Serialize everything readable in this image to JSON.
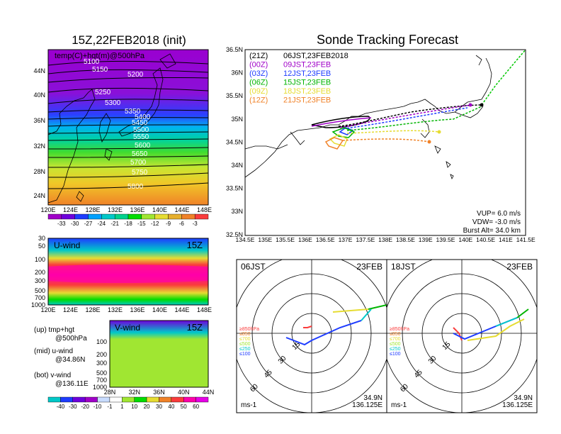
{
  "titles": {
    "init": "15Z,22FEB2018 (init)",
    "tracking": "Sonde Tracking Forecast"
  },
  "map500": {
    "label": "temp(C)+hgt(m)@500hPa",
    "contours": [
      "5100",
      "5150",
      "5200",
      "5250",
      "5300",
      "5350",
      "5400",
      "5450",
      "5500",
      "5550",
      "5600",
      "5650",
      "5700",
      "5750",
      "5800"
    ],
    "lat_ticks": [
      "44N",
      "40N",
      "36N",
      "32N",
      "28N",
      "24N"
    ],
    "lon_ticks": [
      "120E",
      "124E",
      "128E",
      "132E",
      "136E",
      "140E",
      "144E",
      "148E"
    ],
    "colorbar": [
      "-33",
      "-30",
      "-27",
      "-24",
      "-21",
      "-18",
      "-15",
      "-12",
      "-9",
      "-6",
      "-3"
    ],
    "colorbar_colors": [
      "#a000c8",
      "#6e00dc",
      "#1e3cff",
      "#00a0ff",
      "#00c8c8",
      "#00d28c",
      "#00dc00",
      "#a0e632",
      "#e6dc32",
      "#e6af2d",
      "#f08228",
      "#fa3c3c"
    ]
  },
  "uwind": {
    "label": "U-wind",
    "time": "15Z",
    "p_ticks": [
      "30",
      "50",
      "100",
      "200",
      "300",
      "500",
      "700",
      "1000"
    ],
    "lon_ticks": [
      "120E",
      "124E",
      "128E",
      "132E",
      "136E",
      "140E",
      "144E",
      "148E"
    ]
  },
  "vwind": {
    "label": "V-wind",
    "time": "15Z",
    "p_ticks": [
      "30",
      "50",
      "100",
      "200",
      "300",
      "500",
      "700",
      "1000"
    ],
    "lat_ticks": [
      "28N",
      "32N",
      "36N",
      "40N",
      "44N"
    ]
  },
  "notes": {
    "up": "(up) tmp+hgt",
    "up2": "@500hPa",
    "mid": "(mid) u-wind",
    "mid2": "@34.86N",
    "bot": "(bot) v-wind",
    "bot2": "@136.11E"
  },
  "wind_colorbar": [
    "-40",
    "-30",
    "-20",
    "-10",
    "-1",
    "1",
    "10",
    "20",
    "30",
    "40",
    "50",
    "60"
  ],
  "wind_colorbar_colors": [
    "#00c8c8",
    "#1e3cff",
    "#6e00dc",
    "#a000c8",
    "#c8dcff",
    "#ffffff",
    "#a0e632",
    "#00dc00",
    "#e6dc32",
    "#f08228",
    "#fa3c3c",
    "#ff00aa",
    "#e600e6"
  ],
  "tracking": {
    "legend": [
      {
        "run": "(21Z)",
        "time": "06JST,23FEB2018",
        "color": "#000000"
      },
      {
        "run": "(00Z)",
        "time": "09JST,23FEB",
        "color": "#a000c8"
      },
      {
        "run": "(03Z)",
        "time": "12JST,23FEB",
        "color": "#1e3cff"
      },
      {
        "run": "(06Z)",
        "time": "15JST,23FEB",
        "color": "#00b400"
      },
      {
        "run": "(09Z)",
        "time": "18JST,23FEB",
        "color": "#e6dc32"
      },
      {
        "run": "(12Z)",
        "time": "21JST,23FEB",
        "color": "#f08228"
      }
    ],
    "lat_ticks": [
      "36.5N",
      "36N",
      "35.5N",
      "35N",
      "34.5N",
      "34N",
      "33.5N",
      "33N",
      "32.5N"
    ],
    "lon_ticks": [
      "134.5E",
      "135E",
      "135.5E",
      "136E",
      "136.5E",
      "137E",
      "137.5E",
      "138E",
      "138.5E",
      "139E",
      "139.5E",
      "140E",
      "140.5E",
      "141E",
      "141.5E"
    ],
    "vup": "VUP= 6.0 m/s",
    "vdw": "VDW= -3.0 m/s",
    "burst": "Burst Alt= 34.0 km"
  },
  "hodographs": [
    {
      "time": "06JST",
      "date": "23FEB",
      "lat": "34.9N",
      "lon": "136.125E"
    },
    {
      "time": "18JST",
      "date": "23FEB",
      "lat": "34.9N",
      "lon": "136.125E"
    }
  ],
  "hodo_common": {
    "rings": [
      "15",
      "30",
      "45",
      "60"
    ],
    "levels": [
      {
        "label": "≥850hPa",
        "color": "#fa3c3c"
      },
      {
        "label": "≤850",
        "color": "#f08228"
      },
      {
        "label": "≤700",
        "color": "#e6dc32"
      },
      {
        "label": "≤500",
        "color": "#a0e632"
      },
      {
        "label": "≤250",
        "color": "#00c8c8"
      },
      {
        "label": "≤100",
        "color": "#1e3cff"
      }
    ],
    "unit": "ms-1"
  }
}
